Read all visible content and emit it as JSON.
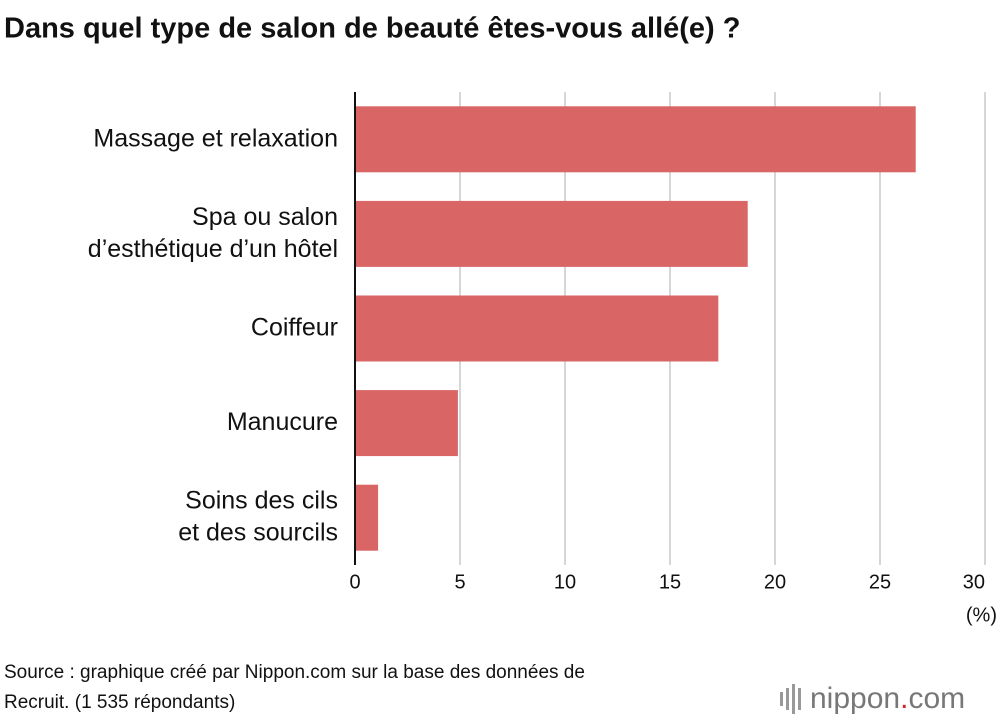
{
  "chart_data": {
    "type": "barh",
    "title": "Dans quel type de salon de beauté êtes-vous allé(e) ?",
    "categories": [
      [
        "Massage et relaxation"
      ],
      [
        "Spa ou salon",
        "d’esthétique d’un hôtel"
      ],
      [
        "Coiffeur"
      ],
      [
        "Manucure"
      ],
      [
        "Soins des cils",
        "et des sourcils"
      ]
    ],
    "values": [
      26.7,
      18.7,
      17.3,
      4.9,
      1.1
    ],
    "color": "#d96565",
    "xlim": [
      0,
      30
    ],
    "xticks": [
      0,
      5,
      10,
      15,
      20,
      25,
      30
    ],
    "grid": true,
    "x_label": "(%)"
  },
  "source": [
    "Source : graphique créé par Nippon.com sur la base des données de",
    "Recruit. (1 535 répondants)"
  ],
  "logo": {
    "name": "nippon",
    "dot": ".",
    "suffix": "com"
  }
}
